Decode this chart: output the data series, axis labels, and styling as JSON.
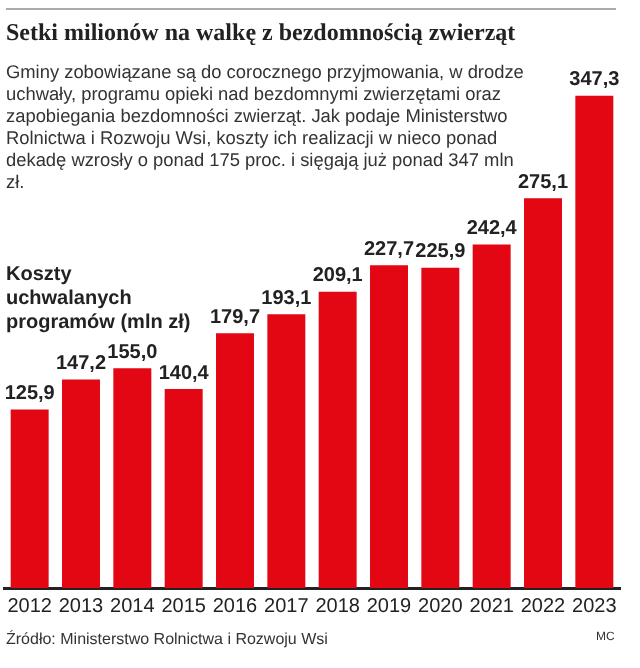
{
  "chart_data": {
    "type": "bar",
    "title": "Setki milionów na walkę z bezdomnością zwierząt",
    "subtitle": "Gminy zobowiązane są do corocznego przyjmowania, w drodze uchwały, programu opieki nad bezdomnymi zwierzętami oraz zapobiegania bezdomności zwierząt. Jak podaje Ministerstwo Rolnictwa i Rozwoju Wsi, koszty ich realizacji w nieco ponad dekadę wzrosły o ponad 175 proc. i sięgają już ponad 347 mln zł.",
    "ylabel": "Koszty uchwalanych programów (mln zł)",
    "categories": [
      "2012",
      "2013",
      "2014",
      "2015",
      "2016",
      "2017",
      "2018",
      "2019",
      "2020",
      "2021",
      "2022",
      "2023"
    ],
    "values": [
      125.9,
      147.2,
      155.0,
      140.4,
      179.7,
      193.1,
      209.1,
      227.7,
      225.9,
      242.4,
      275.1,
      347.3
    ],
    "value_labels": [
      "125,9",
      "147,2",
      "155,0",
      "140,4",
      "179,7",
      "193,1",
      "209,1",
      "227,7",
      "225,9",
      "242,4",
      "275,1",
      "347,3"
    ],
    "color": "#e30613",
    "tick_labels": "x",
    "grid": false,
    "legend": false,
    "annotations": [
      "Źródło: Ministerstwo Rolnictwa i Rozwoju Wsi",
      "MC"
    ]
  }
}
